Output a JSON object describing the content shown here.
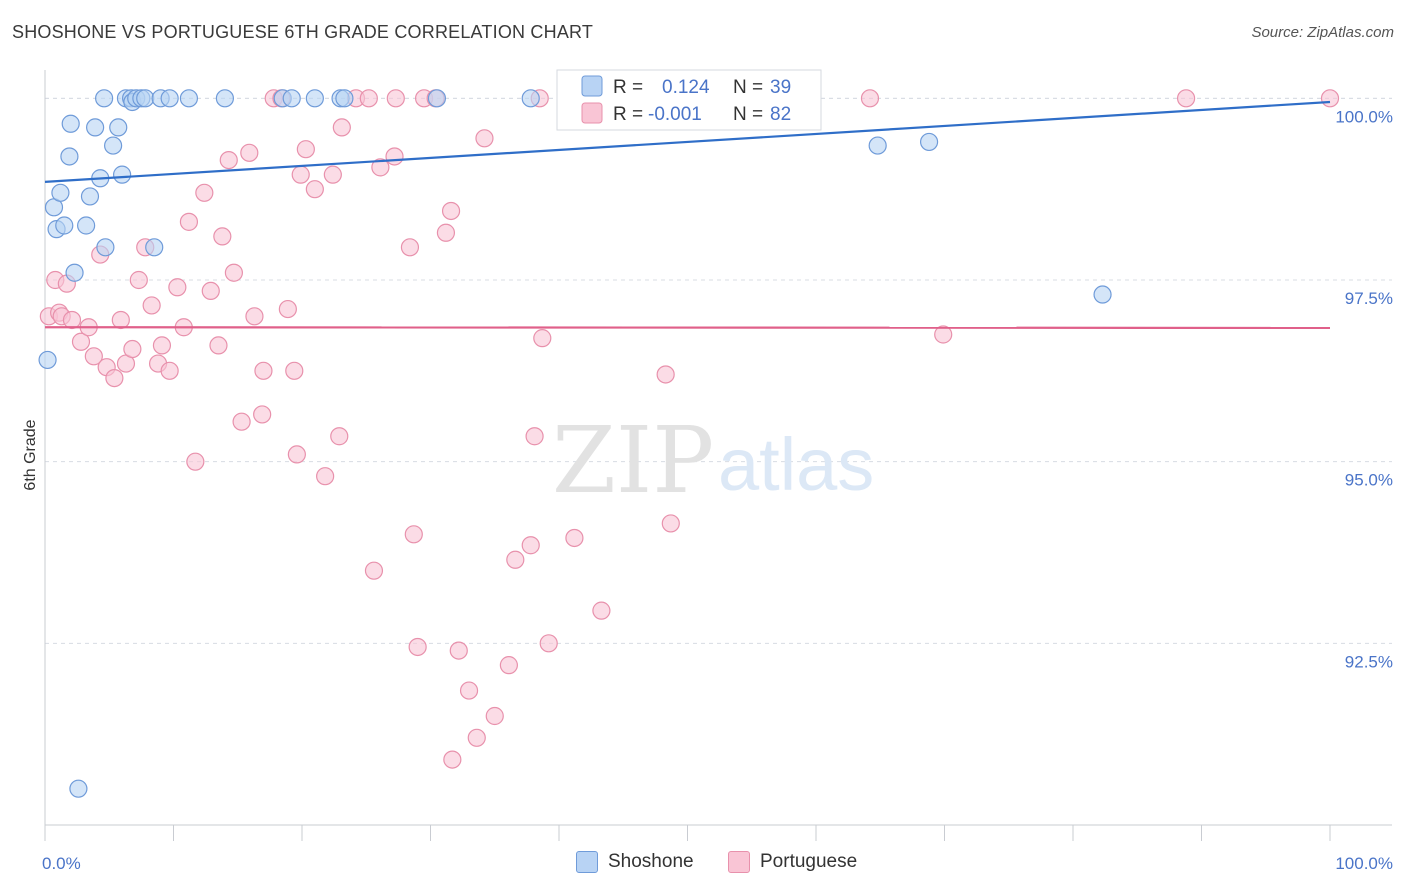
{
  "title": "SHOSHONE VS PORTUGUESE 6TH GRADE CORRELATION CHART",
  "source": "Source: ZipAtlas.com",
  "colors": {
    "shoshone_fill": "#b8d3f4",
    "shoshone_stroke": "#6f9bd9",
    "shoshone_line": "#2f6ec8",
    "portuguese_fill": "#f9c5d5",
    "portuguese_stroke": "#e891ac",
    "portuguese_line": "#e0608a",
    "value_text": "#4a74c8",
    "grid": "#d8dce3"
  },
  "watermark": {
    "zip": "ZIP",
    "atlas": "atlas"
  },
  "legend": {
    "r_label": "R =",
    "n_label": "N =",
    "rows": [
      {
        "series": "Shoshone",
        "r": "0.124",
        "n": "39"
      },
      {
        "series": "Portuguese",
        "r": "-0.001",
        "n": "82"
      }
    ]
  },
  "bottom_legend": [
    "Shoshone",
    "Portuguese"
  ],
  "chart_data": {
    "type": "scatter",
    "title": "SHOSHONE VS PORTUGUESE 6TH GRADE CORRELATION CHART",
    "xlabel": "",
    "ylabel": "6th Grade",
    "xlim": [
      0,
      100
    ],
    "ylim": [
      90.0,
      100.5
    ],
    "x_tick_labels": [
      "0.0%",
      "100.0%"
    ],
    "y_ticks": [
      92.5,
      95.0,
      97.5,
      100.0
    ],
    "y_tick_labels": [
      "92.5%",
      "95.0%",
      "97.5%",
      "100.0%"
    ],
    "grid": true,
    "series": [
      {
        "name": "Shoshone",
        "trend": {
          "x": [
            0,
            100
          ],
          "y": [
            98.85,
            99.95
          ]
        },
        "points": [
          [
            0.2,
            96.4
          ],
          [
            0.7,
            98.5
          ],
          [
            0.9,
            98.2
          ],
          [
            1.2,
            98.7
          ],
          [
            1.5,
            98.25
          ],
          [
            1.9,
            99.2
          ],
          [
            2.0,
            99.65
          ],
          [
            2.3,
            97.6
          ],
          [
            3.2,
            98.25
          ],
          [
            3.5,
            98.65
          ],
          [
            3.9,
            99.6
          ],
          [
            4.3,
            98.9
          ],
          [
            4.6,
            100.0
          ],
          [
            4.7,
            97.95
          ],
          [
            5.3,
            99.35
          ],
          [
            5.7,
            99.6
          ],
          [
            6.0,
            98.95
          ],
          [
            6.3,
            100.0
          ],
          [
            6.7,
            100.0
          ],
          [
            6.8,
            99.95
          ],
          [
            7.1,
            100.0
          ],
          [
            7.5,
            100.0
          ],
          [
            7.8,
            100.0
          ],
          [
            8.5,
            97.95
          ],
          [
            9.0,
            100.0
          ],
          [
            9.7,
            100.0
          ],
          [
            11.2,
            100.0
          ],
          [
            14.0,
            100.0
          ],
          [
            18.5,
            100.0
          ],
          [
            19.2,
            100.0
          ],
          [
            21.0,
            100.0
          ],
          [
            23.0,
            100.0
          ],
          [
            23.3,
            100.0
          ],
          [
            30.5,
            100.0
          ],
          [
            37.8,
            100.0
          ],
          [
            64.8,
            99.35
          ],
          [
            68.8,
            99.4
          ],
          [
            82.3,
            97.3
          ],
          [
            2.6,
            90.5
          ]
        ]
      },
      {
        "name": "Portuguese",
        "trend": {
          "x": [
            0,
            100
          ],
          "y": [
            96.85,
            96.84
          ]
        },
        "points": [
          [
            0.3,
            97.0
          ],
          [
            0.8,
            97.5
          ],
          [
            1.1,
            97.05
          ],
          [
            1.3,
            97.0
          ],
          [
            1.7,
            97.45
          ],
          [
            2.1,
            96.95
          ],
          [
            2.8,
            96.65
          ],
          [
            3.4,
            96.85
          ],
          [
            3.8,
            96.45
          ],
          [
            4.3,
            97.85
          ],
          [
            4.8,
            96.3
          ],
          [
            5.4,
            96.15
          ],
          [
            5.9,
            96.95
          ],
          [
            6.3,
            96.35
          ],
          [
            6.8,
            96.55
          ],
          [
            7.3,
            97.5
          ],
          [
            7.8,
            97.95
          ],
          [
            8.3,
            97.15
          ],
          [
            8.8,
            96.35
          ],
          [
            9.1,
            96.6
          ],
          [
            9.7,
            96.25
          ],
          [
            10.3,
            97.4
          ],
          [
            10.8,
            96.85
          ],
          [
            11.2,
            98.3
          ],
          [
            11.7,
            95.0
          ],
          [
            12.4,
            98.7
          ],
          [
            12.9,
            97.35
          ],
          [
            13.5,
            96.6
          ],
          [
            13.8,
            98.1
          ],
          [
            14.3,
            99.15
          ],
          [
            14.7,
            97.6
          ],
          [
            15.3,
            95.55
          ],
          [
            15.9,
            99.25
          ],
          [
            16.3,
            97.0
          ],
          [
            16.9,
            95.65
          ],
          [
            17.0,
            96.25
          ],
          [
            17.8,
            100.0
          ],
          [
            18.4,
            100.0
          ],
          [
            18.9,
            97.1
          ],
          [
            19.4,
            96.25
          ],
          [
            19.6,
            95.1
          ],
          [
            19.9,
            98.95
          ],
          [
            20.3,
            99.3
          ],
          [
            21.0,
            98.75
          ],
          [
            21.8,
            94.8
          ],
          [
            22.4,
            98.95
          ],
          [
            22.9,
            95.35
          ],
          [
            23.1,
            99.6
          ],
          [
            24.2,
            100.0
          ],
          [
            25.2,
            100.0
          ],
          [
            25.6,
            93.5
          ],
          [
            26.1,
            99.05
          ],
          [
            27.2,
            99.2
          ],
          [
            27.3,
            100.0
          ],
          [
            28.4,
            97.95
          ],
          [
            28.7,
            94.0
          ],
          [
            29.0,
            92.45
          ],
          [
            29.5,
            100.0
          ],
          [
            30.4,
            100.0
          ],
          [
            31.2,
            98.15
          ],
          [
            31.6,
            98.45
          ],
          [
            31.7,
            90.9
          ],
          [
            32.2,
            92.4
          ],
          [
            33.0,
            91.85
          ],
          [
            33.6,
            91.2
          ],
          [
            34.2,
            99.45
          ],
          [
            35.0,
            91.5
          ],
          [
            36.1,
            92.2
          ],
          [
            36.6,
            93.65
          ],
          [
            37.8,
            93.85
          ],
          [
            38.1,
            95.35
          ],
          [
            38.7,
            96.7
          ],
          [
            39.2,
            92.5
          ],
          [
            41.2,
            93.95
          ],
          [
            43.3,
            92.95
          ],
          [
            48.3,
            96.2
          ],
          [
            48.7,
            94.15
          ],
          [
            64.2,
            100.0
          ],
          [
            69.9,
            96.75
          ],
          [
            88.8,
            100.0
          ],
          [
            100.0,
            100.0
          ],
          [
            38.5,
            100.0
          ]
        ]
      }
    ]
  }
}
